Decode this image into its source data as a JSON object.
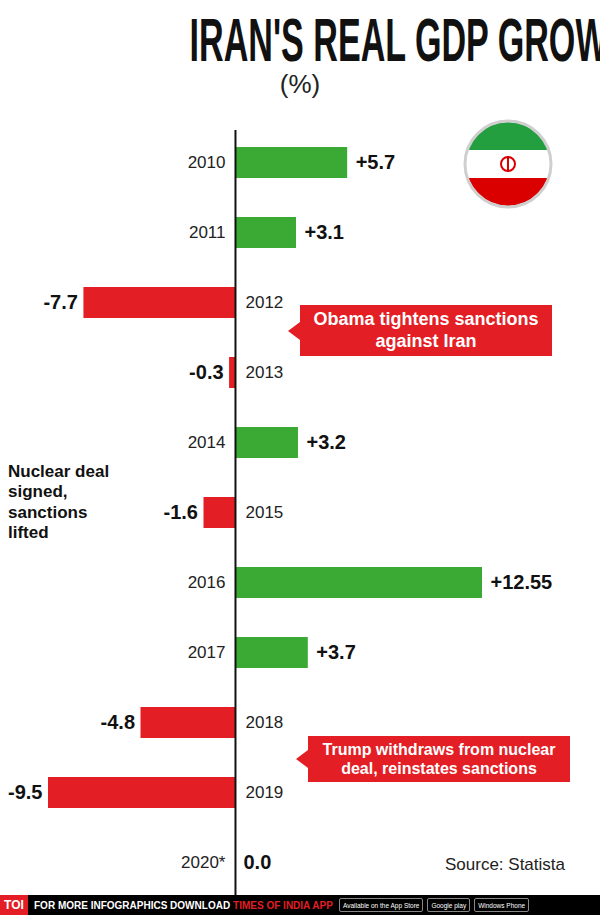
{
  "chart_data": {
    "type": "bar",
    "orientation": "horizontal",
    "title": "IRAN'S REAL GDP GROWTH",
    "subtitle": "(%)",
    "categories": [
      "2010",
      "2011",
      "2012",
      "2013",
      "2014",
      "2015",
      "2016",
      "2017",
      "2018",
      "2019",
      "2020*"
    ],
    "values": [
      5.7,
      3.1,
      -7.7,
      -0.3,
      3.2,
      -1.6,
      12.55,
      3.7,
      -4.8,
      -9.5,
      0.0
    ],
    "value_labels": [
      "+5.7",
      "+3.1",
      "-7.7",
      "-0.3",
      "+3.2",
      "-1.6",
      "+12.55",
      "+3.7",
      "-4.8",
      "-9.5",
      "0.0"
    ],
    "colors": [
      "#3aaa35",
      "#3aaa35",
      "#e31e24",
      "#e31e24",
      "#3aaa35",
      "#e31e24",
      "#3aaa35",
      "#3aaa35",
      "#e31e24",
      "#e31e24",
      "#3aaa35"
    ],
    "xlim": [
      -9.5,
      12.55
    ],
    "data_labels": true,
    "tick_labels": "y",
    "grid": false,
    "annotations": [
      "Obama tightens sanctions against Iran",
      "Nuclear deal signed, sanctions lifted",
      "Trump withdraws from nuclear deal, reinstates sanctions"
    ],
    "source": "Source: Statista",
    "footer": {
      "logo": "TOI",
      "text": "FOR MORE INFOGRAPHICS DOWNLOAD",
      "highlight": "TIMES OF INDIA APP",
      "badges": [
        "Available on the App Store",
        "Google play",
        "Windows Phone"
      ]
    }
  }
}
